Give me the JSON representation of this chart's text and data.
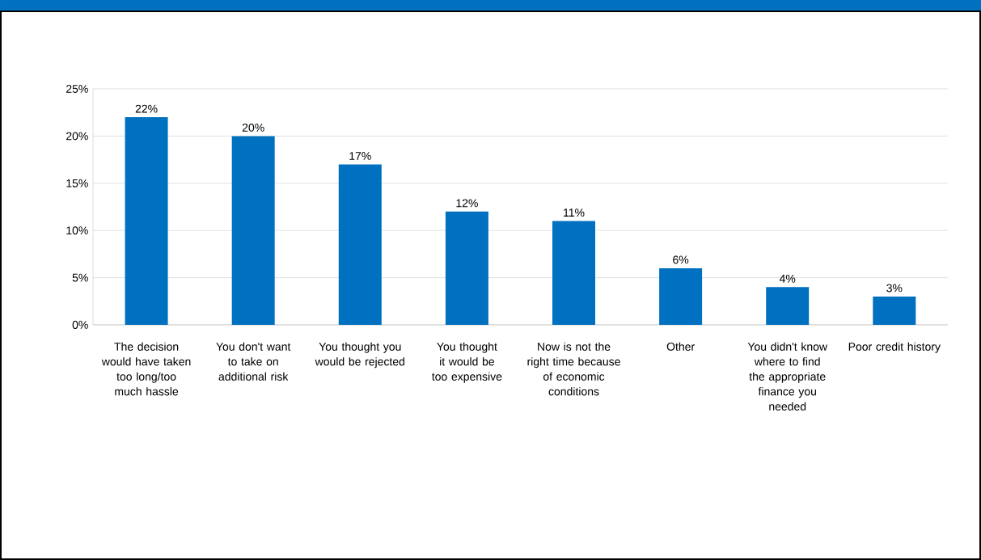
{
  "chart_data": {
    "type": "bar",
    "categories": [
      "The decision would have taken too long/too much hassle",
      "You don't want to take on additional risk",
      "You thought you would be rejected",
      "You thought it would be too expensive",
      "Now is not the right time because of economic conditions",
      "Other",
      "You didn't know where to find the appropriate finance you needed",
      "Poor credit history"
    ],
    "values": [
      22,
      20,
      17,
      12,
      11,
      6,
      4,
      3
    ],
    "value_labels": [
      "22%",
      "20%",
      "17%",
      "12%",
      "11%",
      "6%",
      "4%",
      "3%"
    ],
    "color": "#0070c0",
    "ylim": [
      0,
      25
    ],
    "yticks": [
      {
        "value": 0,
        "label": "0%"
      },
      {
        "value": 5,
        "label": "5%"
      },
      {
        "value": 10,
        "label": "10%"
      },
      {
        "value": 15,
        "label": "15%"
      },
      {
        "value": 20,
        "label": "20%"
      },
      {
        "value": 25,
        "label": "25%"
      }
    ],
    "grid": "y"
  }
}
